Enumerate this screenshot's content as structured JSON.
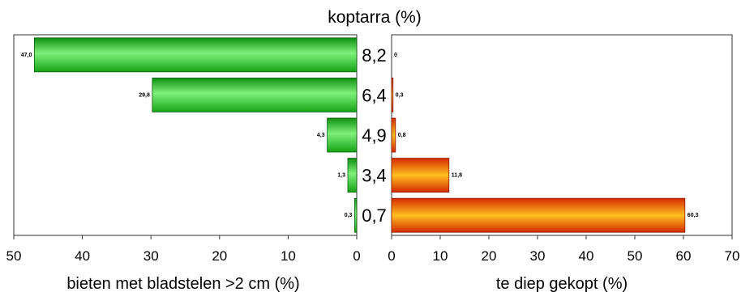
{
  "chart_data": {
    "type": "bar",
    "title": "koptarra (%)",
    "categories": [
      "8,2",
      "6,4",
      "4,9",
      "3,4",
      "0,7"
    ],
    "left_panel": {
      "xlabel": "bieten met bladstelen >2 cm (%)",
      "xlim": [
        50,
        0
      ],
      "ticks": [
        50,
        40,
        30,
        20,
        10,
        0
      ],
      "values": [
        47.0,
        29.8,
        4.3,
        1.3,
        0.3
      ],
      "value_labels": [
        "47,0",
        "29,8",
        "4,3",
        "1,3",
        "0,3"
      ],
      "color": "#22cc22"
    },
    "right_panel": {
      "xlabel": "te diep gekopt (%)",
      "xlim": [
        0,
        70
      ],
      "ticks": [
        0,
        10,
        20,
        30,
        40,
        50,
        60,
        70
      ],
      "values": [
        0,
        0.3,
        0.8,
        11.8,
        60.3
      ],
      "value_labels": [
        "0",
        "0,3",
        "0,8",
        "11,8",
        "60,3"
      ],
      "color": "#ee6600"
    }
  }
}
